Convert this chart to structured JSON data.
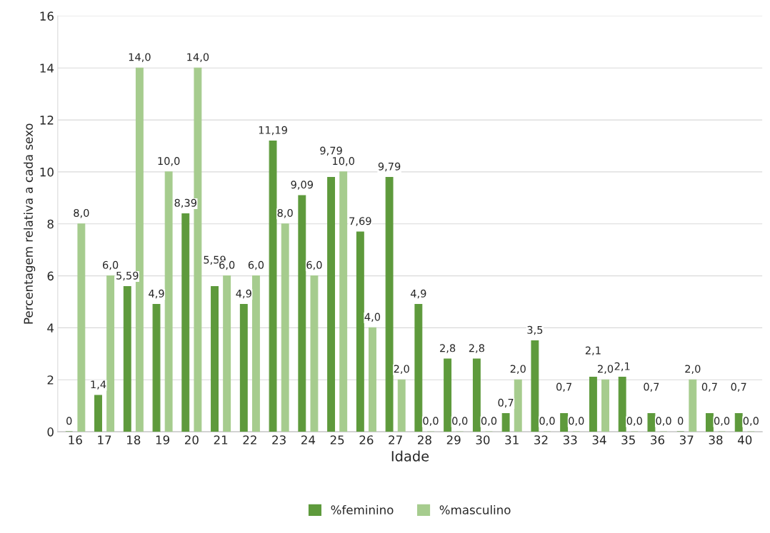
{
  "chart_data": {
    "type": "bar",
    "xlabel": "Idade",
    "ylabel": "Percentagem relativa a cada sexo",
    "categories": [
      "16",
      "17",
      "18",
      "19",
      "20",
      "21",
      "22",
      "23",
      "24",
      "25",
      "26",
      "27",
      "28",
      "29",
      "30",
      "31",
      "32",
      "33",
      "34",
      "35",
      "36",
      "37",
      "38",
      "40"
    ],
    "series": [
      {
        "name": "%feminino",
        "color": "#5e9a3c",
        "values": [
          0,
          1.4,
          5.59,
          4.9,
          8.39,
          5.59,
          4.9,
          11.19,
          9.09,
          9.79,
          7.69,
          9.79,
          4.9,
          2.8,
          2.8,
          0.7,
          3.5,
          0.7,
          2.1,
          2.1,
          0.7,
          0,
          0.7,
          0.7
        ],
        "value_labels": [
          "0",
          "1,4",
          "5,59",
          "4,9",
          "8,39",
          "5,59",
          "4,9",
          "11,19",
          "9,09",
          "9,79",
          "7,69",
          "9,79",
          "4,9",
          "2,8",
          "2,8",
          "0,7",
          "3,5",
          "0,7",
          "2,1",
          "2,1",
          "0,7",
          "0",
          "0,7",
          "0,7"
        ]
      },
      {
        "name": "%masculino",
        "color": "#a6cc8e",
        "values": [
          8,
          6,
          14,
          10,
          14,
          6,
          6,
          8,
          6,
          10,
          4,
          2,
          0,
          0,
          0,
          2,
          0,
          0,
          2,
          0,
          0,
          2,
          0,
          0
        ],
        "value_labels": [
          "8,0",
          "6,0",
          "14,0",
          "10,0",
          "14,0",
          "6,0",
          "6,0",
          "8,0",
          "6,0",
          "10,0",
          "4,0",
          "2,0",
          "0,0",
          "0,0",
          "0,0",
          "2,0",
          "0,0",
          "0,0",
          "2,0",
          "0,0",
          "0,0",
          "2,0",
          "0,0",
          "0,0"
        ]
      }
    ],
    "ylim": [
      0,
      16
    ],
    "yticks": [
      0,
      2,
      4,
      6,
      8,
      10,
      12,
      14,
      16
    ],
    "grid": "y",
    "legend": "bottom"
  }
}
